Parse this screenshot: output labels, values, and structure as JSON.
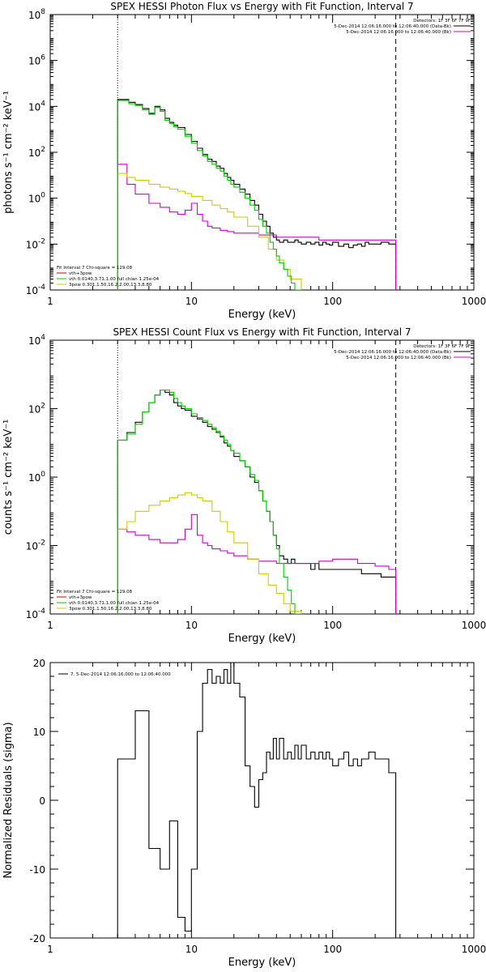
{
  "chart_data": [
    {
      "type": "line",
      "title": "SPEX HESSI Photon Flux vs Energy with Fit Function, Interval 7",
      "xlabel": "Energy (keV)",
      "ylabel": "photons s⁻¹ cm⁻² keV⁻¹",
      "xscale": "log",
      "yscale": "log",
      "xlim": [
        1,
        1000
      ],
      "ylim": [
        0.0001,
        100000000
      ],
      "x_ticks": [
        {
          "value": 1,
          "label": "1"
        },
        {
          "value": 10,
          "label": "10"
        },
        {
          "value": 100,
          "label": "100"
        },
        {
          "value": 1000,
          "label": "1000"
        }
      ],
      "y_ticks": [
        {
          "value": 0.0001,
          "base": "10",
          "exp": "-4"
        },
        {
          "value": 0.01,
          "base": "10",
          "exp": "-2"
        },
        {
          "value": 1,
          "base": "10",
          "exp": "0"
        },
        {
          "value": 100,
          "base": "10",
          "exp": "2"
        },
        {
          "value": 10000,
          "base": "10",
          "exp": "4"
        },
        {
          "value": 1000000,
          "base": "10",
          "exp": "6"
        },
        {
          "value": 100000000,
          "base": "10",
          "exp": "8"
        }
      ],
      "vlines": [
        {
          "x": 3,
          "style": "dotted"
        },
        {
          "x": 280,
          "style": "dashed"
        }
      ],
      "legend_top": {
        "header": "Detectors: 1F 3F 6F 7F 9F",
        "entries": [
          {
            "text": "5-Dec-2014 12:06:16.000 to 12:06:40.000 (Data-Bk)",
            "color": "#000000"
          },
          {
            "text": "5-Dec-2014 12:06:16.000 to 12:06:40.000 (Bk)",
            "color": "#cc00cc"
          }
        ]
      },
      "legend_bottom": {
        "header": "Fit Interval 7   Chi-square = 129.08",
        "entries": [
          {
            "text": "vth+3pow",
            "color": "#cc0000"
          },
          {
            "text": "vth 0.0140,3.71,1.00  full chian 1.25e-04",
            "color": "#00cc00"
          },
          {
            "text": "3pow 0.301,1.50,16.2,2.00,13.3,8.80",
            "color": "#cccc00"
          }
        ]
      },
      "series": [
        {
          "color": "#000000",
          "x": [
            3,
            3.3,
            3.6,
            4,
            4.5,
            5,
            5.5,
            6,
            6.5,
            7,
            7.5,
            8,
            9,
            10,
            11,
            12,
            13,
            14,
            15,
            16,
            17,
            18,
            19,
            20,
            22,
            24,
            26,
            28,
            30,
            32,
            34,
            36,
            38,
            40,
            42,
            45,
            48,
            51,
            54,
            57,
            60,
            65,
            70,
            75,
            80,
            85,
            90,
            95,
            100,
            110,
            120,
            130,
            140,
            150,
            160,
            170,
            180,
            200,
            220,
            250,
            280
          ],
          "y": [
            20000,
            20000,
            15000,
            12000,
            8000,
            5000,
            10000,
            7000,
            3000,
            2000,
            1500,
            1200,
            600,
            300,
            150,
            80,
            50,
            40,
            25,
            20,
            12,
            8,
            6,
            4,
            2.5,
            1.5,
            0.8,
            0.5,
            0.2,
            0.1,
            0.06,
            0.03,
            0.02,
            0.015,
            0.012,
            0.015,
            0.012,
            0.012,
            0.015,
            0.012,
            0.01,
            0.012,
            0.01,
            0.012,
            0.009,
            0.012,
            0.01,
            0.009,
            0.012,
            0.008,
            0.01,
            0.007,
            0.009,
            0.01,
            0.008,
            0.012,
            0.01,
            0.01,
            0.012,
            0.01,
            0.01
          ]
        },
        {
          "color": "#cc00cc",
          "x": [
            3,
            3.5,
            4,
            5,
            6,
            7,
            8,
            9,
            10,
            11,
            12,
            13,
            14,
            16,
            18,
            20,
            25,
            30,
            40,
            50,
            60,
            80,
            100,
            150,
            200,
            280
          ],
          "y": [
            30,
            4,
            1.5,
            0.6,
            0.4,
            0.25,
            0.2,
            0.3,
            0.6,
            0.2,
            0.1,
            0.06,
            0.05,
            0.04,
            0.035,
            0.03,
            0.03,
            0.025,
            0.02,
            0.02,
            0.02,
            0.015,
            0.015,
            0.015,
            0.015,
            0.012
          ]
        },
        {
          "color": "#cccc00",
          "x": [
            3,
            3.5,
            4,
            5,
            6,
            7,
            8,
            9,
            10,
            12,
            14,
            16,
            18,
            20,
            25,
            30,
            35,
            40,
            45,
            50,
            60
          ],
          "y": [
            12,
            8,
            6,
            4,
            3,
            2.5,
            2,
            1.6,
            1.2,
            0.8,
            0.5,
            0.35,
            0.25,
            0.15,
            0.06,
            0.02,
            0.006,
            0.002,
            0.0008,
            0.0003,
            0.0001
          ]
        },
        {
          "color": "#00cc00",
          "x": [
            3,
            3.3,
            3.6,
            4,
            4.5,
            5,
            5.5,
            6,
            6.5,
            7,
            7.5,
            8,
            9,
            10,
            11,
            12,
            13,
            14,
            15,
            16,
            17,
            18,
            19,
            20,
            22,
            24,
            26,
            28,
            30,
            32,
            34,
            36,
            38,
            40,
            42,
            45,
            48,
            51,
            54,
            57,
            60
          ],
          "y": [
            18000,
            18000,
            13000,
            11000,
            7000,
            4500,
            9000,
            6000,
            2500,
            1800,
            1300,
            1000,
            500,
            250,
            120,
            70,
            40,
            30,
            20,
            15,
            9,
            6,
            4,
            3,
            1.8,
            1,
            0.5,
            0.3,
            0.12,
            0.06,
            0.03,
            0.012,
            0.006,
            0.003,
            0.0015,
            0.0008,
            0.0004,
            0.0002,
            0.0001,
            0.0001,
            0.0001
          ]
        }
      ]
    },
    {
      "type": "line",
      "title": "SPEX HESSI Count Flux vs Energy with Fit Function, Interval 7",
      "xlabel": "Energy (keV)",
      "ylabel": "counts s⁻¹ cm⁻² keV⁻¹",
      "xscale": "log",
      "yscale": "log",
      "xlim": [
        1,
        1000
      ],
      "ylim": [
        0.0001,
        10000
      ],
      "x_ticks": [
        {
          "value": 1,
          "label": "1"
        },
        {
          "value": 10,
          "label": "10"
        },
        {
          "value": 100,
          "label": "100"
        },
        {
          "value": 1000,
          "label": "1000"
        }
      ],
      "y_ticks": [
        {
          "value": 0.0001,
          "base": "10",
          "exp": "-4"
        },
        {
          "value": 0.01,
          "base": "10",
          "exp": "-2"
        },
        {
          "value": 1,
          "base": "10",
          "exp": "0"
        },
        {
          "value": 100,
          "base": "10",
          "exp": "2"
        },
        {
          "value": 10000,
          "base": "10",
          "exp": "4"
        }
      ],
      "vlines": [
        {
          "x": 3,
          "style": "dotted"
        },
        {
          "x": 280,
          "style": "dashed"
        }
      ],
      "legend_top": {
        "header": "Detectors: 1F 3F 6F 7F 9F",
        "entries": [
          {
            "text": "5-Dec-2014 12:06:16.000 to 12:06:40.000 (Data-Bk)",
            "color": "#000000"
          },
          {
            "text": "5-Dec-2014 12:06:16.000 to 12:06:40.000 (Bk)",
            "color": "#cc00cc"
          }
        ]
      },
      "legend_bottom": {
        "header": "Fit Interval 7   Chi-square = 129.08",
        "entries": [
          {
            "text": "vth+3pow",
            "color": "#cc0000"
          },
          {
            "text": "vth 0.0140,3.71,1.00  full chian 1.25e-04",
            "color": "#00cc00"
          },
          {
            "text": "3pow 0.301,1.50,16.2,2.00,13.3,8.80",
            "color": "#cccc00"
          }
        ]
      },
      "series": [
        {
          "color": "#000000",
          "x": [
            3,
            3.5,
            4,
            4.5,
            5,
            5.5,
            6,
            6.5,
            7,
            7.5,
            8,
            8.5,
            9,
            10,
            11,
            12,
            13,
            14,
            15,
            16,
            17,
            18,
            19,
            20,
            22,
            24,
            26,
            28,
            30,
            32,
            34,
            36,
            38,
            40,
            42,
            45,
            48,
            51,
            54,
            57,
            60,
            65,
            70,
            75,
            80,
            90,
            100,
            120,
            140,
            160,
            180,
            200,
            220,
            250,
            280
          ],
          "y": [
            12,
            20,
            40,
            80,
            150,
            250,
            350,
            300,
            250,
            150,
            120,
            100,
            90,
            60,
            50,
            40,
            30,
            25,
            20,
            15,
            10,
            8,
            6,
            4,
            3,
            2,
            1,
            0.7,
            0.4,
            0.2,
            0.1,
            0.05,
            0.02,
            0.01,
            0.005,
            0.004,
            0.003,
            0.004,
            0.003,
            0.003,
            0.003,
            0.003,
            0.002,
            0.003,
            0.002,
            0.002,
            0.002,
            0.002,
            0.002,
            0.0015,
            0.0015,
            0.0015,
            0.0012,
            0.0012,
            0.001
          ]
        },
        {
          "color": "#cc00cc",
          "x": [
            3,
            3.5,
            4,
            5,
            6,
            7,
            8,
            9,
            10,
            11,
            12,
            13,
            14,
            16,
            18,
            20,
            25,
            30,
            40,
            50,
            60,
            80,
            100,
            150,
            200,
            250,
            280
          ],
          "y": [
            0.03,
            0.025,
            0.02,
            0.015,
            0.012,
            0.012,
            0.015,
            0.03,
            0.08,
            0.02,
            0.012,
            0.01,
            0.008,
            0.007,
            0.006,
            0.005,
            0.004,
            0.0035,
            0.003,
            0.003,
            0.003,
            0.0035,
            0.004,
            0.003,
            0.0025,
            0.002,
            0.0015
          ]
        },
        {
          "color": "#cccc00",
          "x": [
            3,
            3.5,
            4,
            5,
            6,
            7,
            8,
            9,
            10,
            11,
            12,
            14,
            16,
            18,
            20,
            25,
            30,
            35,
            40,
            45,
            50,
            60
          ],
          "y": [
            0.03,
            0.05,
            0.1,
            0.15,
            0.2,
            0.25,
            0.3,
            0.35,
            0.3,
            0.25,
            0.2,
            0.1,
            0.05,
            0.025,
            0.012,
            0.004,
            0.0015,
            0.0007,
            0.0004,
            0.0002,
            0.00012,
            0.0001
          ]
        },
        {
          "color": "#00cc00",
          "x": [
            3,
            3.5,
            4,
            4.5,
            5,
            5.5,
            6,
            6.5,
            7,
            7.5,
            8,
            8.5,
            9,
            10,
            11,
            12,
            13,
            14,
            15,
            16,
            17,
            18,
            19,
            20,
            22,
            24,
            26,
            28,
            30,
            32,
            34,
            36,
            38,
            40,
            42,
            45,
            48,
            51,
            54,
            57,
            60
          ],
          "y": [
            12,
            18,
            35,
            80,
            150,
            250,
            350,
            350,
            300,
            200,
            150,
            120,
            100,
            70,
            55,
            45,
            35,
            28,
            22,
            16,
            12,
            9,
            6,
            5,
            3,
            2,
            1.2,
            0.8,
            0.4,
            0.2,
            0.1,
            0.05,
            0.02,
            0.008,
            0.003,
            0.0012,
            0.0005,
            0.0002,
            0.0001,
            0.0001,
            0.0001
          ]
        }
      ]
    },
    {
      "type": "line",
      "title": "",
      "xlabel": "Energy (keV)",
      "ylabel": "Normalized Residuals (sigma)",
      "xscale": "log",
      "yscale": "linear",
      "xlim": [
        1,
        1000
      ],
      "ylim": [
        -20,
        20
      ],
      "x_ticks": [
        {
          "value": 1,
          "label": "1"
        },
        {
          "value": 10,
          "label": "10"
        },
        {
          "value": 100,
          "label": "100"
        },
        {
          "value": 1000,
          "label": "1000"
        }
      ],
      "y_ticks": [
        {
          "value": -20,
          "label": "-20"
        },
        {
          "value": -10,
          "label": "-10"
        },
        {
          "value": 0,
          "label": "0"
        },
        {
          "value": 10,
          "label": "10"
        },
        {
          "value": 20,
          "label": "20"
        }
      ],
      "legend": {
        "entries": [
          {
            "text": "7.  5-Dec-2014 12:06:16.000 to 12:06:40.000",
            "color": "#000000"
          }
        ]
      },
      "series": [
        {
          "color": "#000000",
          "x": [
            3,
            4,
            5,
            5.5,
            6,
            7,
            7.5,
            8,
            9,
            10,
            11,
            12,
            13,
            14,
            15,
            16,
            17,
            18,
            19,
            20,
            22,
            24,
            26,
            28,
            30,
            32,
            34,
            36,
            38,
            40,
            42,
            45,
            48,
            51,
            54,
            57,
            60,
            65,
            70,
            75,
            80,
            85,
            90,
            95,
            100,
            110,
            120,
            130,
            140,
            150,
            160,
            170,
            180,
            200,
            220,
            250,
            280
          ],
          "y": [
            6,
            13,
            -7,
            -7,
            -10,
            -3,
            -3,
            -17,
            -19,
            -10,
            10,
            17,
            19,
            17,
            18,
            17,
            19,
            17,
            20,
            17,
            15,
            5,
            2,
            -1,
            3,
            4,
            7,
            6,
            9,
            6,
            9,
            6,
            7,
            6,
            8,
            6,
            8,
            6,
            7,
            6,
            7,
            6,
            7,
            6,
            5,
            6,
            7,
            5,
            6,
            5,
            6,
            6,
            7,
            6,
            6,
            4,
            4
          ]
        }
      ]
    }
  ]
}
